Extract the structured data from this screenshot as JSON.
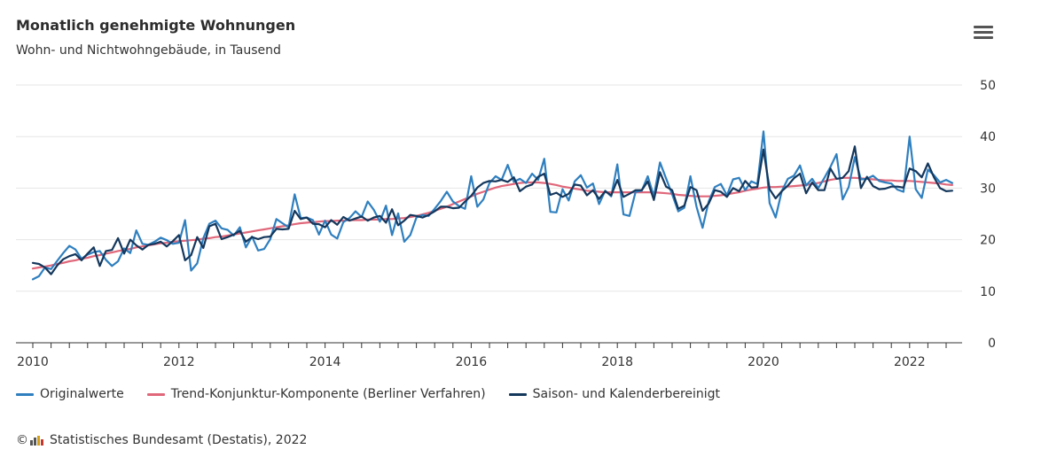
{
  "title": "Monatlich genehmigte Wohnungen",
  "subtitle": "Wohn- und Nichtwohngebäude, in Tausend",
  "menu_icon": "hamburger-menu-icon",
  "credits": {
    "copyright_symbol": "©",
    "logo_icon": "destatis-bars-icon",
    "text": "Statistisches Bundesamt (Destatis), 2022"
  },
  "colors": {
    "original": "#2f7fbf",
    "trend": "#e0677a",
    "adjusted": "#14375c",
    "grid": "#e6e6e6",
    "axis": "#333333"
  },
  "chart_data": {
    "type": "line",
    "title": "Monatlich genehmigte Wohnungen",
    "subtitle": "Wohn- und Nichtwohngebäude, in Tausend",
    "x_start": "2010-01",
    "x_tick_labels": [
      "2010",
      "2012",
      "2014",
      "2016",
      "2018",
      "2020",
      "2022"
    ],
    "y_tick_labels": [
      "0",
      "10",
      "20",
      "30",
      "40",
      "50"
    ],
    "ylim": [
      0,
      50
    ],
    "y_axis_position": "right",
    "grid": true,
    "legend_position": "bottom",
    "series": [
      {
        "name": "Originalwerte",
        "color": "#2f7fbf",
        "values": [
          12.3,
          12.9,
          14.6,
          14.3,
          15.9,
          17.4,
          18.8,
          18.1,
          16.3,
          17.1,
          17.6,
          17.8,
          16.1,
          14.9,
          15.8,
          18.3,
          17.4,
          21.8,
          19.2,
          19.0,
          19.6,
          20.4,
          19.9,
          19.2,
          19.4,
          23.8,
          14.0,
          15.4,
          20.3,
          23.1,
          23.7,
          22.2,
          21.9,
          20.8,
          22.4,
          18.5,
          20.6,
          17.9,
          18.2,
          20.1,
          24.0,
          23.2,
          22.4,
          28.8,
          24.2,
          24.3,
          23.8,
          21.0,
          23.7,
          21.0,
          20.2,
          23.4,
          24.2,
          25.5,
          24.4,
          27.4,
          25.8,
          23.5,
          26.6,
          20.9,
          25.1,
          19.6,
          20.9,
          24.3,
          24.8,
          24.6,
          26.0,
          27.5,
          29.3,
          27.4,
          26.5,
          26.0,
          32.3,
          26.4,
          27.8,
          31.0,
          32.3,
          31.6,
          34.5,
          31.2,
          31.8,
          31.0,
          32.8,
          31.6,
          35.7,
          25.4,
          25.3,
          29.8,
          27.6,
          31.3,
          32.5,
          30.1,
          30.9,
          26.9,
          29.5,
          28.4,
          34.6,
          24.9,
          24.6,
          29.3,
          29.5,
          32.3,
          28.4,
          35.0,
          31.9,
          28.8,
          25.5,
          26.2,
          32.3,
          26.4,
          22.3,
          27.4,
          30.2,
          30.8,
          28.6,
          31.7,
          32.0,
          29.6,
          31.3,
          30.8,
          41.0,
          27.1,
          24.3,
          29.4,
          31.8,
          32.4,
          34.4,
          30.5,
          31.8,
          30.0,
          32.0,
          34.1,
          36.6,
          27.8,
          30.2,
          36.0,
          31.7,
          31.8,
          32.4,
          31.4,
          31.1,
          30.9,
          29.7,
          29.3,
          40.0,
          29.8,
          28.1,
          33.6,
          32.5,
          31.1,
          31.6,
          31.0
        ]
      },
      {
        "name": "Trend-Konjunktur-Komponente (Berliner Verfahren)",
        "color": "#e0677a",
        "values": [
          14.4,
          14.6,
          14.8,
          15.0,
          15.3,
          15.5,
          15.8,
          16.0,
          16.3,
          16.5,
          16.8,
          17.0,
          17.3,
          17.5,
          17.8,
          18.0,
          18.2,
          18.5,
          18.7,
          18.9,
          19.1,
          19.3,
          19.4,
          19.6,
          19.7,
          19.8,
          19.9,
          20.0,
          20.2,
          20.3,
          20.5,
          20.6,
          20.8,
          21.0,
          21.2,
          21.4,
          21.6,
          21.8,
          22.0,
          22.2,
          22.4,
          22.6,
          22.8,
          23.0,
          23.2,
          23.3,
          23.4,
          23.5,
          23.6,
          23.6,
          23.7,
          23.7,
          23.8,
          23.8,
          23.8,
          23.9,
          23.9,
          23.9,
          24.0,
          24.0,
          24.1,
          24.2,
          24.4,
          24.6,
          24.9,
          25.2,
          25.6,
          26.0,
          26.4,
          26.9,
          27.4,
          27.9,
          28.4,
          28.9,
          29.3,
          29.7,
          30.1,
          30.4,
          30.6,
          30.8,
          31.0,
          31.1,
          31.1,
          31.1,
          31.0,
          30.8,
          30.6,
          30.3,
          30.1,
          29.9,
          29.7,
          29.5,
          29.4,
          29.3,
          29.2,
          29.2,
          29.2,
          29.2,
          29.2,
          29.2,
          29.2,
          29.2,
          29.2,
          29.1,
          29.0,
          28.9,
          28.7,
          28.6,
          28.5,
          28.4,
          28.4,
          28.4,
          28.5,
          28.6,
          28.8,
          29.0,
          29.2,
          29.5,
          29.7,
          29.9,
          30.1,
          30.2,
          30.2,
          30.3,
          30.3,
          30.4,
          30.5,
          30.6,
          30.8,
          31.0,
          31.3,
          31.6,
          31.8,
          32.0,
          32.0,
          32.0,
          31.9,
          31.8,
          31.7,
          31.6,
          31.5,
          31.5,
          31.4,
          31.4,
          31.4,
          31.3,
          31.2,
          31.1,
          31.0,
          30.9,
          30.7,
          30.6
        ]
      },
      {
        "name": "Saison- und Kalenderbereinigt",
        "color": "#14375c",
        "values": [
          15.5,
          15.3,
          14.6,
          13.3,
          15.0,
          16.2,
          16.8,
          17.2,
          16.0,
          17.3,
          18.5,
          14.9,
          17.8,
          18.0,
          20.3,
          17.3,
          20.0,
          18.9,
          18.1,
          19.0,
          19.2,
          19.6,
          18.7,
          19.7,
          20.9,
          16.0,
          17.0,
          20.5,
          18.4,
          22.6,
          23.1,
          20.1,
          20.5,
          21.0,
          21.7,
          19.6,
          20.5,
          20.1,
          20.5,
          20.6,
          22.1,
          22.0,
          22.1,
          25.6,
          24.0,
          24.3,
          23.1,
          23.0,
          22.4,
          23.8,
          22.9,
          24.4,
          23.7,
          24.1,
          24.5,
          23.7,
          24.3,
          24.6,
          23.3,
          25.9,
          22.8,
          23.7,
          24.8,
          24.6,
          24.3,
          24.8,
          25.5,
          26.4,
          26.4,
          26.1,
          26.2,
          27.4,
          28.5,
          30.1,
          31.0,
          31.4,
          31.3,
          31.6,
          31.2,
          32.1,
          29.4,
          30.3,
          30.7,
          32.2,
          32.8,
          28.7,
          29.1,
          28.3,
          28.9,
          30.7,
          30.5,
          28.6,
          29.6,
          27.9,
          29.4,
          28.6,
          31.6,
          28.3,
          28.9,
          29.6,
          29.6,
          31.3,
          27.7,
          33.1,
          30.3,
          29.6,
          26.0,
          26.6,
          30.2,
          29.6,
          25.6,
          27.0,
          29.6,
          29.3,
          28.3,
          30.0,
          29.4,
          31.4,
          30.1,
          30.2,
          37.5,
          29.8,
          28.0,
          29.4,
          30.5,
          31.9,
          32.8,
          29.0,
          31.1,
          29.6,
          29.6,
          33.8,
          31.8,
          32.0,
          33.3,
          38.1,
          30.0,
          32.2,
          30.4,
          29.8,
          29.9,
          30.3,
          30.3,
          30.1,
          33.8,
          33.3,
          32.1,
          34.8,
          32.1,
          30.0,
          29.4,
          29.5
        ]
      }
    ]
  }
}
